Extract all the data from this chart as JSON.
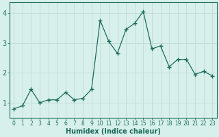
{
  "x": [
    0,
    1,
    2,
    3,
    4,
    5,
    6,
    7,
    8,
    9,
    10,
    11,
    12,
    13,
    14,
    15,
    16,
    17,
    18,
    19,
    20,
    21,
    22,
    23
  ],
  "y": [
    0.8,
    0.9,
    1.45,
    1.0,
    1.1,
    1.1,
    1.35,
    1.1,
    1.15,
    1.45,
    3.75,
    3.05,
    2.65,
    3.45,
    3.65,
    4.05,
    2.8,
    2.9,
    2.2,
    2.45,
    2.45,
    1.95,
    2.05,
    1.9
  ],
  "line_color": "#1a6b5a",
  "marker": "+",
  "marker_size": 4,
  "bg_color": "#d8f0ec",
  "grid_color": "#c4ddd8",
  "tick_color": "#1a6b5a",
  "xlabel": "Humidex (Indice chaleur)",
  "ylim": [
    0.5,
    4.35
  ],
  "xlim": [
    -0.5,
    23.5
  ],
  "yticks": [
    1,
    2,
    3,
    4
  ],
  "xticks": [
    0,
    1,
    2,
    3,
    4,
    5,
    6,
    7,
    8,
    9,
    10,
    11,
    12,
    13,
    14,
    15,
    16,
    17,
    18,
    19,
    20,
    21,
    22,
    23
  ],
  "figsize": [
    3.2,
    2.0
  ],
  "dpi": 100
}
